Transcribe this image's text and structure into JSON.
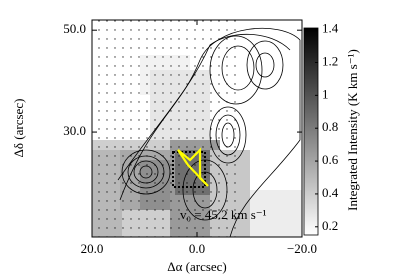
{
  "chart_data": {
    "type": "image",
    "xlabel": "Δα (arcsec)",
    "ylabel": "Δδ (arcsec)",
    "xlim": [
      20,
      -20
    ],
    "xticks": [
      {
        "value": 20,
        "label": "20.0"
      },
      {
        "value": 0,
        "label": "0.0"
      },
      {
        "value": -20,
        "label": "−20.0"
      }
    ],
    "ylim": [
      9.4,
      52
    ],
    "yticks": [
      {
        "value": 50,
        "label": "50.0"
      },
      {
        "value": 30,
        "label": "30.0"
      }
    ],
    "annotation": "v₀ = 45.2 km s⁻¹",
    "colorbar": {
      "label": "Integrated Intensity (K km s⁻¹)",
      "lim": [
        0.15,
        1.41
      ],
      "ticks": [
        0.2,
        0.4,
        0.6,
        0.8,
        1.0,
        1.2,
        1.4
      ],
      "colors": [
        "#ffffff",
        "#000000"
      ]
    }
  }
}
